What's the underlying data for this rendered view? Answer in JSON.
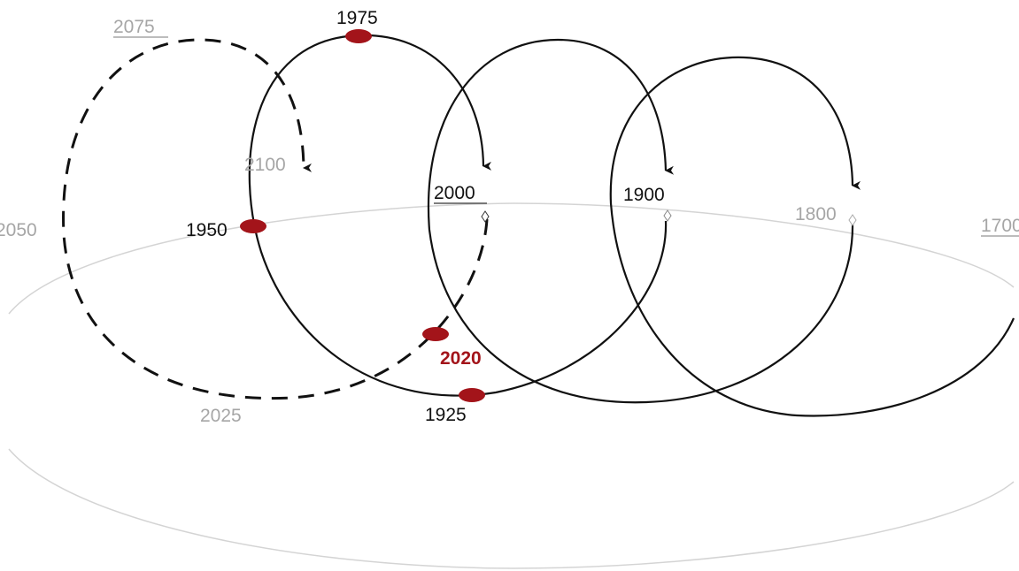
{
  "labels": {
    "y2075": "2075",
    "y1975": "1975",
    "y2100": "2100",
    "y2000": "2000",
    "y1900": "1900",
    "y1800": "1800",
    "y1700": "1700",
    "y2050": "2050",
    "y1950": "1950",
    "y2020": "2020",
    "y2025": "2025",
    "y1925": "1925"
  }
}
